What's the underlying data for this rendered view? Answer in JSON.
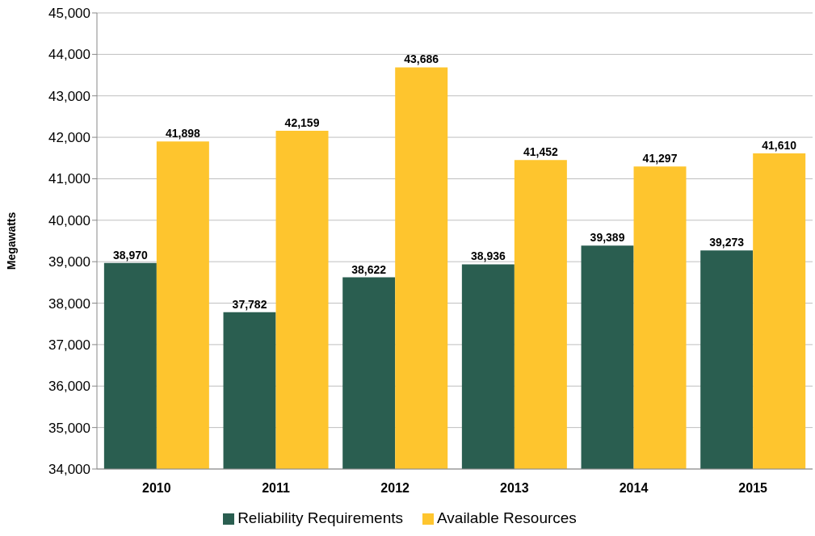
{
  "chart_data": {
    "type": "bar",
    "ylabel": "Megawatts",
    "categories": [
      "2010",
      "2011",
      "2012",
      "2013",
      "2014",
      "2015"
    ],
    "series": [
      {
        "name": "Reliability Requirements",
        "color": "#2a5e50",
        "values": [
          38970,
          37782,
          38622,
          38936,
          39389,
          39273
        ],
        "value_labels": [
          "38,970",
          "37,782",
          "38,622",
          "38,936",
          "39,389",
          "39,273"
        ]
      },
      {
        "name": "Available Resources",
        "color": "#fec52e",
        "values": [
          41898,
          42159,
          43686,
          41452,
          41297,
          41610
        ],
        "value_labels": [
          "41,898",
          "42,159",
          "43,686",
          "41,452",
          "41,297",
          "41,610"
        ]
      }
    ],
    "ylim": [
      34000,
      45000
    ],
    "yticks": [
      {
        "value": 34000,
        "label": "34,000"
      },
      {
        "value": 35000,
        "label": "35,000"
      },
      {
        "value": 36000,
        "label": "36,000"
      },
      {
        "value": 37000,
        "label": "37,000"
      },
      {
        "value": 38000,
        "label": "38,000"
      },
      {
        "value": 39000,
        "label": "39,000"
      },
      {
        "value": 40000,
        "label": "40,000"
      },
      {
        "value": 41000,
        "label": "41,000"
      },
      {
        "value": 42000,
        "label": "42,000"
      },
      {
        "value": 43000,
        "label": "43,000"
      },
      {
        "value": 44000,
        "label": "44,000"
      },
      {
        "value": 45000,
        "label": "45,000"
      }
    ],
    "grid": "y",
    "legend": "bottom"
  }
}
